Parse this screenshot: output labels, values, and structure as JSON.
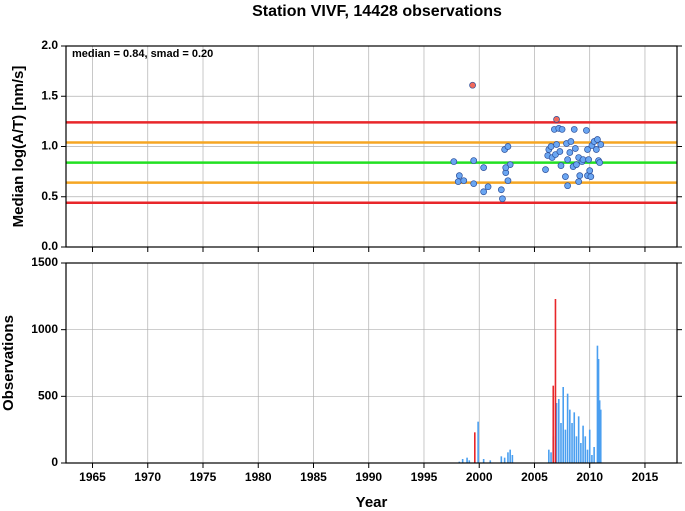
{
  "chart_data": [
    {
      "type": "scatter",
      "title": "Station VIVF, 14428 observations",
      "ylabel": "Median log(A/T) [nm/s]",
      "annotation": "median = 0.84, smad = 0.20",
      "xlim": [
        1962.6,
        2017.9
      ],
      "xticks": [
        1965,
        1970,
        1975,
        1980,
        1985,
        1990,
        1995,
        2000,
        2005,
        2010,
        2015
      ],
      "ylim": [
        0,
        2
      ],
      "yticks": [
        {
          "value": 0,
          "label": "0.0"
        },
        0.5,
        {
          "value": 1,
          "label": "1.0"
        },
        1.5,
        {
          "value": 2,
          "label": "2.0"
        }
      ],
      "grid": true,
      "hlines": [
        {
          "value": 1.24,
          "color": "#e8262a"
        },
        {
          "value": 1.04,
          "color": "#f5a623"
        },
        {
          "value": 0.84,
          "color": "#22e022"
        },
        {
          "value": 0.64,
          "color": "#f5a623"
        },
        {
          "value": 0.44,
          "color": "#e8262a"
        }
      ],
      "series": [
        {
          "color": "#6aa6f2",
          "x": [
            1997.7,
            1998.2,
            1998.1,
            1998.6,
            1999.5,
            1999.5,
            2000.4,
            2000.4,
            2000.8,
            2002.0,
            2002.1,
            2002.3,
            2002.6,
            2002.4,
            2002.6,
            2002.8,
            2002.4,
            2006.0,
            2006.2,
            2006.3,
            2006.5,
            2006.6,
            2006.8,
            2006.9,
            2007.0,
            2007.2,
            2007.3,
            2007.4,
            2007.5,
            2007.8,
            2007.9,
            2008.0,
            2008.0,
            2008.2,
            2008.3,
            2008.5,
            2008.6,
            2008.7,
            2008.8,
            2009.0,
            2009.0,
            2009.1,
            2009.3,
            2009.4,
            2009.7,
            2009.8,
            2009.8,
            2009.9,
            2010.0,
            2010.1,
            2010.2,
            2010.4,
            2010.6,
            2010.7,
            2010.8,
            2010.9,
            2011.0
          ],
          "values": [
            0.85,
            0.71,
            0.65,
            0.66,
            0.86,
            0.63,
            0.79,
            0.55,
            0.6,
            0.57,
            0.48,
            0.97,
            1.0,
            0.74,
            0.66,
            0.82,
            0.79,
            0.77,
            0.91,
            0.97,
            1.0,
            0.89,
            1.17,
            0.92,
            1.02,
            1.18,
            0.95,
            0.81,
            1.17,
            0.7,
            1.03,
            0.61,
            0.87,
            0.94,
            1.05,
            0.8,
            1.17,
            0.98,
            0.82,
            0.65,
            0.89,
            0.71,
            0.85,
            0.87,
            1.16,
            0.97,
            0.71,
            0.87,
            0.76,
            0.7,
            1.01,
            1.05,
            0.97,
            1.07,
            0.86,
            0.84,
            1.02
          ]
        },
        {
          "color": "#f26a5c",
          "x": [
            1999.4,
            2007.0
          ],
          "values": [
            1.61,
            1.27
          ]
        }
      ]
    },
    {
      "type": "bar",
      "xlabel": "Year",
      "ylabel": "Observations",
      "xlim": [
        1962.6,
        2017.9
      ],
      "xticks": [
        1965,
        1970,
        1975,
        1980,
        1985,
        1990,
        1995,
        2000,
        2005,
        2010,
        2015
      ],
      "ylim": [
        0,
        1500
      ],
      "yticks": [
        0,
        500,
        1000,
        1500
      ],
      "grid": true,
      "series": [
        {
          "color": "#4a9ff0",
          "x": [
            1998.2,
            1998.5,
            1998.9,
            1999.1,
            1999.9,
            2000.4,
            2001.0,
            2002.0,
            2002.3,
            2002.6,
            2002.8,
            2003.0,
            2006.3,
            2006.5,
            2006.7,
            2007.0,
            2007.2,
            2007.4,
            2007.6,
            2007.8,
            2008.0,
            2008.2,
            2008.4,
            2008.6,
            2008.8,
            2009.0,
            2009.2,
            2009.4,
            2009.6,
            2009.8,
            2010.0,
            2010.2,
            2010.4,
            2010.7,
            2010.8,
            2010.9,
            2011.0
          ],
          "values": [
            10,
            30,
            40,
            20,
            310,
            30,
            20,
            50,
            40,
            80,
            100,
            60,
            100,
            80,
            200,
            450,
            480,
            300,
            570,
            250,
            520,
            400,
            300,
            380,
            200,
            350,
            150,
            280,
            200,
            100,
            250,
            60,
            120,
            880,
            780,
            470,
            400
          ]
        },
        {
          "color": "#e8262a",
          "x": [
            1999.6,
            2006.7,
            2006.9
          ],
          "values": [
            230,
            580,
            1230
          ]
        }
      ]
    }
  ]
}
